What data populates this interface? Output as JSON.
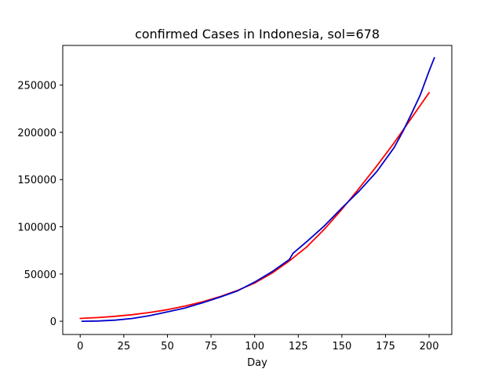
{
  "chart_data": {
    "type": "line",
    "title": "confirmed Cases in Indonesia, sol=678",
    "xlabel": "Day",
    "ylabel": "",
    "xlim": [
      -10,
      213
    ],
    "ylim": [
      -14000,
      292000
    ],
    "xticks": [
      0,
      25,
      50,
      75,
      100,
      125,
      150,
      175,
      200
    ],
    "yticks": [
      0,
      50000,
      100000,
      150000,
      200000,
      250000
    ],
    "grid": false,
    "series": [
      {
        "color": "#ff0000",
        "x": [
          0,
          10,
          20,
          30,
          40,
          50,
          60,
          70,
          80,
          90,
          100,
          110,
          120,
          130,
          140,
          150,
          160,
          170,
          180,
          190,
          200
        ],
        "y": [
          3000,
          3900,
          5200,
          7000,
          9300,
          12300,
          16000,
          20500,
          26000,
          32500,
          40500,
          51000,
          64000,
          79000,
          97500,
          118500,
          141000,
          164500,
          189000,
          215500,
          242000
        ]
      },
      {
        "color": "#0000cc",
        "x": [
          1,
          10,
          20,
          30,
          40,
          50,
          60,
          70,
          80,
          90,
          100,
          110,
          120,
          122,
          130,
          140,
          150,
          160,
          170,
          180,
          185,
          190,
          195,
          200,
          203
        ],
        "y": [
          0,
          300,
          1200,
          3000,
          6000,
          10000,
          14000,
          19500,
          25500,
          32000,
          41500,
          52500,
          65500,
          72000,
          84500,
          101000,
          120000,
          138000,
          158500,
          184000,
          201000,
          220000,
          240000,
          265000,
          279000
        ]
      }
    ]
  }
}
